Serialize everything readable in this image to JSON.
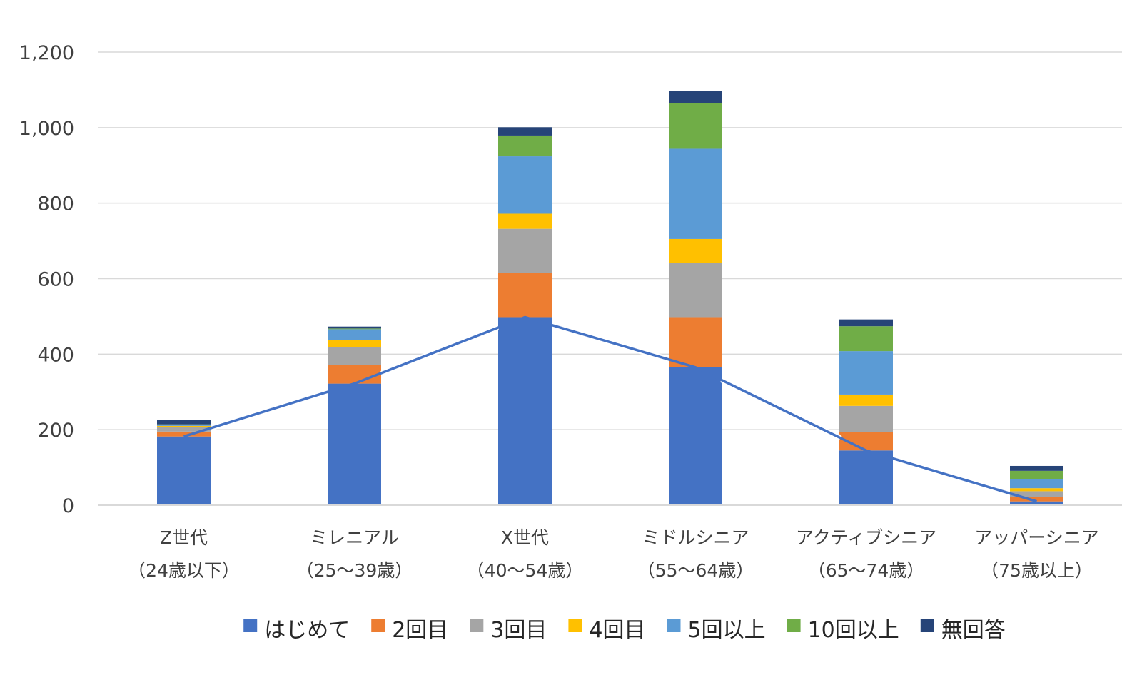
{
  "chart_data": {
    "type": "bar",
    "stacked": true,
    "title": "",
    "xlabel": "",
    "ylabel": "",
    "ylim": [
      0,
      1200
    ],
    "yticks": [
      0,
      200,
      400,
      600,
      800,
      1000,
      1200
    ],
    "ytick_labels": [
      "0",
      "200",
      "400",
      "600",
      "800",
      "1,000",
      "1,200"
    ],
    "grid": true,
    "legend_position": "bottom",
    "categories": [
      {
        "line1": "Z世代",
        "line2": "（24歳以下）"
      },
      {
        "line1": "ミレニアル",
        "line2": "（25～39歳）"
      },
      {
        "line1": "X世代",
        "line2": "（40～54歳）"
      },
      {
        "line1": "ミドルシニア",
        "line2": "（55～64歳）"
      },
      {
        "line1": "アクティブシニア",
        "line2": "（65～74歳）"
      },
      {
        "line1": "アッパーシニア",
        "line2": "（75歳以上）"
      }
    ],
    "series": [
      {
        "name": "はじめて",
        "color": "#4472C4",
        "values": [
          182,
          322,
          498,
          365,
          145,
          10
        ]
      },
      {
        "name": "2回目",
        "color": "#ED7D31",
        "values": [
          13,
          50,
          118,
          133,
          48,
          12
        ]
      },
      {
        "name": "3回目",
        "color": "#A5A5A5",
        "values": [
          12,
          46,
          116,
          144,
          70,
          15
        ]
      },
      {
        "name": "4回目",
        "color": "#FFC000",
        "values": [
          3,
          20,
          40,
          63,
          30,
          8
        ]
      },
      {
        "name": "5回以上",
        "color": "#5B9BD5",
        "values": [
          3,
          28,
          152,
          239,
          115,
          23
        ]
      },
      {
        "name": "10回以上",
        "color": "#70AD47",
        "values": [
          1,
          2,
          55,
          121,
          66,
          23
        ]
      },
      {
        "name": "無回答",
        "color": "#264478",
        "values": [
          12,
          5,
          22,
          32,
          18,
          13
        ]
      }
    ],
    "line": {
      "color": "#4472C4",
      "values": [
        182,
        322,
        498,
        365,
        145,
        10
      ]
    }
  }
}
